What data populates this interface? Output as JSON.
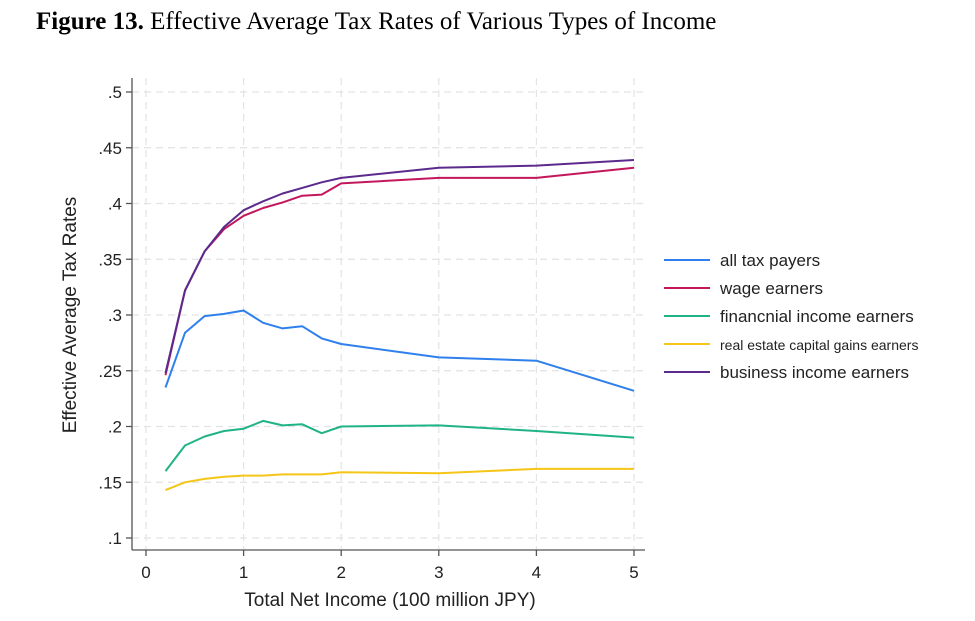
{
  "figure": {
    "label": "Figure 13.",
    "caption": "Effective Average Tax Rates of Various Types of Income"
  },
  "chart_data": {
    "type": "line",
    "title": "Effective Average Tax Rates of Various Types of Income",
    "xlabel": "Total Net Income (100 million JPY)",
    "ylabel": "Effective Average Tax Rates",
    "xlim": [
      0,
      5
    ],
    "ylim": [
      0.1,
      0.5
    ],
    "x_ticks": [
      0,
      1,
      2,
      3,
      4,
      5
    ],
    "x_tick_labels": [
      "0",
      "1",
      "2",
      "3",
      "4",
      "5"
    ],
    "y_ticks": [
      0.1,
      0.15,
      0.2,
      0.25,
      0.3,
      0.35,
      0.4,
      0.45,
      0.5
    ],
    "y_tick_labels": [
      ".1",
      ".15",
      ".2",
      ".25",
      ".3",
      ".35",
      ".4",
      ".45",
      ".5"
    ],
    "grid": true,
    "legend_position": "right",
    "x": [
      0.2,
      0.4,
      0.6,
      0.8,
      1.0,
      1.2,
      1.4,
      1.6,
      1.8,
      2.0,
      3.0,
      4.0,
      5.0
    ],
    "series": [
      {
        "name": "all tax payers",
        "color": "#2f80ed",
        "values": [
          0.235,
          0.284,
          0.299,
          0.301,
          0.304,
          0.293,
          0.288,
          0.29,
          0.279,
          0.274,
          0.262,
          0.259,
          0.232
        ]
      },
      {
        "name": "wage earners",
        "color": "#c2185b",
        "values": [
          0.246,
          0.322,
          0.357,
          0.377,
          0.389,
          0.396,
          0.401,
          0.407,
          0.408,
          0.418,
          0.423,
          0.423,
          0.432
        ]
      },
      {
        "name": "financnial income earners",
        "color": "#1fb386",
        "values": [
          0.16,
          0.183,
          0.191,
          0.196,
          0.198,
          0.205,
          0.201,
          0.202,
          0.194,
          0.2,
          0.201,
          0.196,
          0.19
        ]
      },
      {
        "name": "real estate capital gains earners",
        "color": "#f5c518",
        "values": [
          0.143,
          0.15,
          0.153,
          0.155,
          0.156,
          0.156,
          0.157,
          0.157,
          0.157,
          0.159,
          0.158,
          0.162,
          0.162
        ]
      },
      {
        "name": "business income earners",
        "color": "#5b2a8c",
        "values": [
          0.248,
          0.322,
          0.357,
          0.379,
          0.394,
          0.402,
          0.409,
          0.414,
          0.419,
          0.423,
          0.432,
          0.434,
          0.439
        ]
      }
    ]
  }
}
